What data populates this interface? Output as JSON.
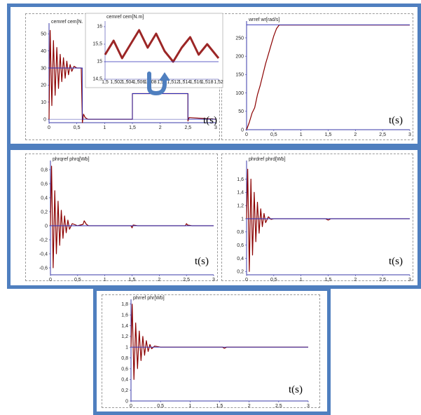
{
  "colors": {
    "frame": "#4f7fbf",
    "series": "#8b0000",
    "reference": "#2b2bb5",
    "axis": "#3a3aa8"
  },
  "time_axis_label": "t(s)",
  "icons": {
    "zoom_arrow": "curved-arrow-icon"
  },
  "chart_data": [
    {
      "id": "cem",
      "type": "line",
      "title": "cemref cem[N.",
      "xlabel": "t(s)",
      "xlim": [
        0,
        3
      ],
      "ylim": [
        -2,
        55
      ],
      "xticks": [
        "0",
        "0,5",
        "1",
        "1,5",
        "2",
        "2,5",
        "3"
      ],
      "yticks": [
        "0",
        "10",
        "20",
        "30",
        "40",
        "50"
      ],
      "series": [
        {
          "role": "measured",
          "points": [
            [
              0,
              0
            ],
            [
              0.02,
              52
            ],
            [
              0.05,
              8
            ],
            [
              0.08,
              46
            ],
            [
              0.11,
              14
            ],
            [
              0.14,
              42
            ],
            [
              0.17,
              18
            ],
            [
              0.2,
              38
            ],
            [
              0.23,
              22
            ],
            [
              0.26,
              36
            ],
            [
              0.29,
              24
            ],
            [
              0.32,
              34
            ],
            [
              0.35,
              26
            ],
            [
              0.38,
              32
            ],
            [
              0.41,
              28
            ],
            [
              0.45,
              31
            ],
            [
              0.5,
              30
            ],
            [
              0.58,
              30
            ],
            [
              0.6,
              -2
            ],
            [
              0.62,
              3
            ],
            [
              0.65,
              1
            ],
            [
              0.7,
              0
            ],
            [
              1.5,
              0
            ],
            [
              1.5,
              15
            ],
            [
              2.5,
              15
            ],
            [
              2.5,
              -1
            ],
            [
              2.52,
              1
            ],
            [
              3,
              0
            ]
          ]
        },
        {
          "role": "reference",
          "points": [
            [
              0,
              30
            ],
            [
              0.6,
              30
            ],
            [
              0.6,
              0
            ],
            [
              1.5,
              0
            ],
            [
              1.5,
              15
            ],
            [
              2.5,
              15
            ],
            [
              2.5,
              0
            ],
            [
              3,
              0
            ]
          ]
        }
      ]
    },
    {
      "id": "inset",
      "type": "line",
      "title": "cemref cem[N.m]",
      "xlim": [
        1.5,
        1.52
      ],
      "ylim": [
        14.5,
        16.1
      ],
      "xticks": [
        "1,5",
        "1,502",
        "1,504",
        "1,506",
        "1,508",
        "1,51",
        "1,512",
        "1,514",
        "1,516",
        "1,518",
        "1,52"
      ],
      "yticks": [
        "14,5",
        "15",
        "15,5",
        "16"
      ],
      "series": [
        {
          "role": "measured",
          "points": [
            [
              1.5,
              15.2
            ],
            [
              1.5015,
              15.6
            ],
            [
              1.503,
              15.1
            ],
            [
              1.5045,
              15.5
            ],
            [
              1.506,
              15.9
            ],
            [
              1.5075,
              15.4
            ],
            [
              1.509,
              15.8
            ],
            [
              1.5105,
              15.3
            ],
            [
              1.512,
              15.0
            ],
            [
              1.5135,
              15.4
            ],
            [
              1.515,
              15.7
            ],
            [
              1.5165,
              15.2
            ],
            [
              1.518,
              15.5
            ],
            [
              1.52,
              15.1
            ]
          ]
        },
        {
          "role": "reference",
          "points": [
            [
              1.5,
              15
            ],
            [
              1.52,
              15
            ]
          ]
        }
      ]
    },
    {
      "id": "wr",
      "type": "line",
      "title": "wrref wr[rad/s]",
      "xlabel": "t(s)",
      "xlim": [
        0,
        3
      ],
      "ylim": [
        0,
        290
      ],
      "xticks": [
        "0",
        "0,5",
        "1",
        "1,5",
        "2",
        "2,5",
        "3"
      ],
      "yticks": [
        "0",
        "50",
        "100",
        "150",
        "200",
        "250"
      ],
      "series": [
        {
          "role": "measured",
          "points": [
            [
              0,
              0
            ],
            [
              0.05,
              20
            ],
            [
              0.1,
              45
            ],
            [
              0.15,
              60
            ],
            [
              0.2,
              95
            ],
            [
              0.25,
              120
            ],
            [
              0.3,
              150
            ],
            [
              0.35,
              180
            ],
            [
              0.4,
              205
            ],
            [
              0.45,
              230
            ],
            [
              0.5,
              255
            ],
            [
              0.55,
              275
            ],
            [
              0.6,
              285
            ],
            [
              3,
              285
            ]
          ]
        },
        {
          "role": "reference",
          "points": [
            [
              0,
              285
            ],
            [
              3,
              285
            ]
          ]
        }
      ]
    },
    {
      "id": "phrq",
      "type": "line",
      "title": "phrqref phrq[Wb]",
      "xlabel": "t(s)",
      "xlim": [
        0,
        3
      ],
      "ylim": [
        -0.7,
        0.9
      ],
      "xticks": [
        "0",
        "0,5",
        "1",
        "1,5",
        "2",
        "2,5",
        "3"
      ],
      "yticks": [
        "-0,6",
        "-0,4",
        "-0,2",
        "0",
        "0,2",
        "0,4",
        "0,6",
        "0,8"
      ],
      "series": [
        {
          "role": "measured",
          "points": [
            [
              0,
              0
            ],
            [
              0.02,
              0.85
            ],
            [
              0.05,
              -0.6
            ],
            [
              0.08,
              0.5
            ],
            [
              0.11,
              -0.4
            ],
            [
              0.14,
              0.35
            ],
            [
              0.17,
              -0.28
            ],
            [
              0.2,
              0.22
            ],
            [
              0.23,
              -0.18
            ],
            [
              0.26,
              0.14
            ],
            [
              0.29,
              -0.1
            ],
            [
              0.32,
              0.08
            ],
            [
              0.35,
              -0.05
            ],
            [
              0.4,
              0.03
            ],
            [
              0.5,
              0
            ],
            [
              0.6,
              0.02
            ],
            [
              0.62,
              0.07
            ],
            [
              0.66,
              0.02
            ],
            [
              0.7,
              0
            ],
            [
              1.48,
              0
            ],
            [
              1.5,
              -0.03
            ],
            [
              1.52,
              0.01
            ],
            [
              1.6,
              0
            ],
            [
              2.48,
              0
            ],
            [
              2.5,
              0.03
            ],
            [
              2.52,
              0.01
            ],
            [
              2.6,
              0
            ],
            [
              3,
              0
            ]
          ]
        },
        {
          "role": "reference",
          "points": [
            [
              0,
              0
            ],
            [
              3,
              0
            ]
          ]
        }
      ]
    },
    {
      "id": "phrd",
      "type": "line",
      "title": "phrdref phrd[Wb]",
      "xlabel": "t(s)",
      "xlim": [
        0,
        3
      ],
      "ylim": [
        0.15,
        1.85
      ],
      "xticks": [
        "0",
        "0,5",
        "1",
        "1,5",
        "2",
        "2,5",
        "3"
      ],
      "yticks": [
        "0,2",
        "0,4",
        "0,6",
        "0,8",
        "1",
        "1,2",
        "1,4",
        "1,6"
      ],
      "series": [
        {
          "role": "measured",
          "points": [
            [
              0,
              1
            ],
            [
              0.02,
              1.75
            ],
            [
              0.05,
              0.2
            ],
            [
              0.08,
              1.6
            ],
            [
              0.11,
              0.45
            ],
            [
              0.14,
              1.4
            ],
            [
              0.17,
              0.65
            ],
            [
              0.2,
              1.25
            ],
            [
              0.23,
              0.78
            ],
            [
              0.26,
              1.15
            ],
            [
              0.29,
              0.88
            ],
            [
              0.32,
              1.08
            ],
            [
              0.35,
              0.94
            ],
            [
              0.4,
              1.03
            ],
            [
              0.45,
              0.99
            ],
            [
              0.5,
              1
            ],
            [
              1.45,
              1
            ],
            [
              1.5,
              0.98
            ],
            [
              1.55,
              1
            ],
            [
              3,
              1
            ]
          ]
        },
        {
          "role": "reference",
          "points": [
            [
              0,
              1
            ],
            [
              3,
              1
            ]
          ]
        }
      ]
    },
    {
      "id": "phr",
      "type": "line",
      "title": "phrref phr[Wb]",
      "xlabel": "t(s)",
      "xlim": [
        0,
        3
      ],
      "ylim": [
        0,
        1.85
      ],
      "xticks": [
        "0",
        "0,5",
        "1",
        "1,5",
        "2",
        "2,5",
        "3"
      ],
      "yticks": [
        "0",
        "0,2",
        "0,4",
        "0,6",
        "0,8",
        "1",
        "1,2",
        "1,4",
        "1,6",
        "1,8"
      ],
      "series": [
        {
          "role": "measured",
          "points": [
            [
              0,
              1
            ],
            [
              0.02,
              1.8
            ],
            [
              0.05,
              0.4
            ],
            [
              0.08,
              1.45
            ],
            [
              0.11,
              0.6
            ],
            [
              0.14,
              1.3
            ],
            [
              0.17,
              0.75
            ],
            [
              0.2,
              1.2
            ],
            [
              0.23,
              0.85
            ],
            [
              0.26,
              1.12
            ],
            [
              0.29,
              0.92
            ],
            [
              0.32,
              1.05
            ],
            [
              0.35,
              0.97
            ],
            [
              0.4,
              1.02
            ],
            [
              0.5,
              1
            ],
            [
              1.55,
              1
            ],
            [
              1.58,
              0.98
            ],
            [
              1.62,
              1
            ],
            [
              3,
              1
            ]
          ]
        },
        {
          "role": "reference",
          "points": [
            [
              0,
              1
            ],
            [
              3,
              1
            ]
          ]
        }
      ]
    }
  ]
}
